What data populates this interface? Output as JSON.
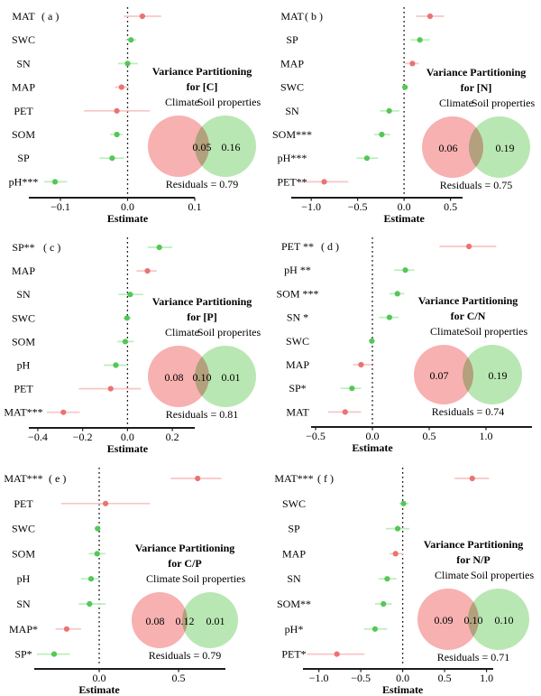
{
  "figure_name": "variance-partitioning-forest-plots",
  "colors": {
    "climate_point": "#ec7373",
    "climate_ci": "#f8c6c6",
    "soil_point": "#55c757",
    "soil_ci": "#b9efb9",
    "venn_climate_fill": "#f7b1b1",
    "venn_soil_fill": "#b9e7b3",
    "axis_line": "#1c1c1c",
    "text": "#000000"
  },
  "chart_data": [
    {
      "type": "scatter",
      "panel_label": "( a )",
      "title": "Variance Partitioning",
      "subtitle": "for [C]",
      "legend": {
        "climate": "Climate",
        "soil": "Soil properties"
      },
      "venn_values": {
        "climate": null,
        "overlap": "0.05",
        "soil": "0.16"
      },
      "residuals_label": "Residuals = 0.79",
      "x_axis": {
        "label": "Estimate",
        "xlim": [
          -0.147,
          0.1
        ],
        "ticks": [
          {
            "v": -0.1,
            "t": "−0.1"
          },
          {
            "v": 0.0,
            "t": "0.0"
          },
          {
            "v": 0.1,
            "t": "0.1"
          }
        ]
      },
      "rows": [
        {
          "label": "MAT",
          "group": "climate",
          "est": 0.022,
          "lo": -0.006,
          "hi": 0.05
        },
        {
          "label": "SWC",
          "group": "soil",
          "est": 0.005,
          "lo": -0.003,
          "hi": 0.013
        },
        {
          "label": "SN",
          "group": "soil",
          "est": 0.0,
          "lo": -0.014,
          "hi": 0.015
        },
        {
          "label": "MAP",
          "group": "climate",
          "est": -0.009,
          "lo": -0.019,
          "hi": 0.002
        },
        {
          "label": "PET",
          "group": "climate",
          "est": -0.016,
          "lo": -0.065,
          "hi": 0.033
        },
        {
          "label": "SOM",
          "group": "soil",
          "est": -0.016,
          "lo": -0.026,
          "hi": -0.007
        },
        {
          "label": "SP",
          "group": "soil",
          "est": -0.023,
          "lo": -0.042,
          "hi": -0.005
        },
        {
          "label": "pH***",
          "group": "soil",
          "est": -0.108,
          "lo": -0.124,
          "hi": -0.09
        }
      ]
    },
    {
      "type": "scatter",
      "panel_label": "( b )",
      "title": "Variance Partitioning",
      "subtitle": "for [N]",
      "legend": {
        "climate": "Climate",
        "soil": "Soil properties"
      },
      "venn_values": {
        "climate": "0.06",
        "overlap": null,
        "soil": "0.19"
      },
      "residuals_label": "Residuals = 0.75",
      "x_axis": {
        "label": "Estimate",
        "xlim": [
          -1.215,
          0.63
        ],
        "ticks": [
          {
            "v": -1.0,
            "t": "−1.0"
          },
          {
            "v": -0.5,
            "t": "−0.5"
          },
          {
            "v": 0.0,
            "t": "0.0"
          },
          {
            "v": 0.5,
            "t": "0.5"
          }
        ]
      },
      "rows": [
        {
          "label": "MAT",
          "group": "climate",
          "est": 0.28,
          "lo": 0.13,
          "hi": 0.43
        },
        {
          "label": "SP",
          "group": "soil",
          "est": 0.17,
          "lo": 0.07,
          "hi": 0.28
        },
        {
          "label": "MAP",
          "group": "climate",
          "est": 0.09,
          "lo": 0.01,
          "hi": 0.16
        },
        {
          "label": "SWC",
          "group": "soil",
          "est": 0.01,
          "lo": -0.01,
          "hi": 0.03
        },
        {
          "label": "SN",
          "group": "soil",
          "est": -0.16,
          "lo": -0.26,
          "hi": -0.05
        },
        {
          "label": "SOM***",
          "group": "soil",
          "est": -0.24,
          "lo": -0.32,
          "hi": -0.15
        },
        {
          "label": "pH***",
          "group": "soil",
          "est": -0.4,
          "lo": -0.51,
          "hi": -0.28
        },
        {
          "label": "PET**",
          "group": "climate",
          "est": -0.86,
          "lo": -1.12,
          "hi": -0.6
        }
      ]
    },
    {
      "type": "scatter",
      "panel_label": "( c )",
      "title": "Variance Partitioning",
      "subtitle": "for [P]",
      "legend": {
        "climate": "Climate",
        "soil": "Soil properites"
      },
      "venn_values": {
        "climate": "0.08",
        "overlap": "0.10",
        "soil": "0.01"
      },
      "residuals_label": "Residuals = 0.81",
      "x_axis": {
        "label": "Estimate",
        "xlim": [
          -0.44,
          0.3
        ],
        "ticks": [
          {
            "v": -0.4,
            "t": "−0.4"
          },
          {
            "v": -0.2,
            "t": "−0.2"
          },
          {
            "v": 0.0,
            "t": "0.0"
          },
          {
            "v": 0.2,
            "t": "0.2"
          }
        ]
      },
      "rows": [
        {
          "label": "SP**",
          "group": "soil",
          "est": 0.142,
          "lo": 0.09,
          "hi": 0.2
        },
        {
          "label": "MAP",
          "group": "climate",
          "est": 0.089,
          "lo": 0.04,
          "hi": 0.13
        },
        {
          "label": "SN",
          "group": "soil",
          "est": 0.012,
          "lo": -0.04,
          "hi": 0.07
        },
        {
          "label": "SWC",
          "group": "soil",
          "est": -0.002,
          "lo": -0.02,
          "hi": 0.016
        },
        {
          "label": "SOM",
          "group": "soil",
          "est": -0.01,
          "lo": -0.045,
          "hi": 0.028
        },
        {
          "label": "pH",
          "group": "soil",
          "est": -0.052,
          "lo": -0.106,
          "hi": 0.001
        },
        {
          "label": "PET",
          "group": "climate",
          "est": -0.075,
          "lo": -0.217,
          "hi": 0.06
        },
        {
          "label": "MAT***",
          "group": "climate",
          "est": -0.286,
          "lo": -0.36,
          "hi": -0.213
        }
      ]
    },
    {
      "type": "scatter",
      "panel_label": "( d )",
      "title": "Variance Partitioning",
      "subtitle": "for C/N",
      "legend": {
        "climate": "Climate",
        "soil": "Soil properties"
      },
      "venn_values": {
        "climate": "0.07",
        "overlap": null,
        "soil": "0.19"
      },
      "residuals_label": "Residuals = 0.74",
      "x_axis": {
        "label": "Estimate",
        "xlim": [
          -0.54,
          1.405
        ],
        "ticks": [
          {
            "v": -0.5,
            "t": "−0.5"
          },
          {
            "v": 0.0,
            "t": "0.0"
          },
          {
            "v": 0.5,
            "t": "0.5"
          },
          {
            "v": 1.0,
            "t": "1.0"
          }
        ]
      },
      "rows": [
        {
          "label": "PET **",
          "group": "climate",
          "est": 0.85,
          "lo": 0.59,
          "hi": 1.09
        },
        {
          "label": "pH **",
          "group": "soil",
          "est": 0.29,
          "lo": 0.19,
          "hi": 0.37
        },
        {
          "label": "SOM ***",
          "group": "soil",
          "est": 0.22,
          "lo": 0.15,
          "hi": 0.28
        },
        {
          "label": "SN *",
          "group": "soil",
          "est": 0.15,
          "lo": 0.06,
          "hi": 0.23
        },
        {
          "label": "SWC",
          "group": "soil",
          "est": -0.005,
          "lo": -0.03,
          "hi": 0.02
        },
        {
          "label": "MAP",
          "group": "climate",
          "est": -0.1,
          "lo": -0.17,
          "hi": -0.01
        },
        {
          "label": "SP*",
          "group": "soil",
          "est": -0.18,
          "lo": -0.28,
          "hi": -0.1
        },
        {
          "label": "MAT",
          "group": "climate",
          "est": -0.24,
          "lo": -0.39,
          "hi": -0.1
        }
      ]
    },
    {
      "type": "scatter",
      "panel_label": "( e )",
      "title": "Variance Partitioning",
      "subtitle": "for C/P",
      "legend": {
        "climate": "Climate",
        "soil": "Soil properties"
      },
      "venn_values": {
        "climate": "0.08",
        "overlap": "0.12",
        "soil": "0.01"
      },
      "residuals_label": "Residuals = 0.79",
      "x_axis": {
        "label": "Estimate",
        "xlim": [
          -0.409,
          0.795
        ],
        "ticks": [
          {
            "v": 0.0,
            "t": "0.0"
          },
          {
            "v": 0.5,
            "t": "0.5"
          }
        ]
      },
      "rows": [
        {
          "label": "MAT***",
          "group": "climate",
          "est": 0.62,
          "lo": 0.45,
          "hi": 0.77
        },
        {
          "label": "PET",
          "group": "climate",
          "est": 0.04,
          "lo": -0.24,
          "hi": 0.32
        },
        {
          "label": "SWC",
          "group": "soil",
          "est": -0.01,
          "lo": -0.025,
          "hi": 0.008
        },
        {
          "label": "SOM",
          "group": "soil",
          "est": -0.013,
          "lo": -0.066,
          "hi": 0.038
        },
        {
          "label": "pH",
          "group": "soil",
          "est": -0.051,
          "lo": -0.114,
          "hi": 0.001
        },
        {
          "label": "SN",
          "group": "soil",
          "est": -0.061,
          "lo": -0.129,
          "hi": 0.04
        },
        {
          "label": "MAP*",
          "group": "climate",
          "est": -0.205,
          "lo": -0.275,
          "hi": -0.114
        },
        {
          "label": "SP*",
          "group": "soil",
          "est": -0.284,
          "lo": -0.392,
          "hi": -0.184
        }
      ]
    },
    {
      "type": "scatter",
      "panel_label": "( f )",
      "title": "Variance Partitioning",
      "subtitle": "for N/P",
      "legend": {
        "climate": "Climate",
        "soil": "Soil properties"
      },
      "venn_values": {
        "climate": "0.09",
        "overlap": "0.10",
        "soil": "0.10"
      },
      "residuals_label": "Residuals = 0.71",
      "x_axis": {
        "label": "Estimate",
        "xlim": [
          -1.19,
          1.08
        ],
        "ticks": [
          {
            "v": -1.0,
            "t": "−1.0"
          },
          {
            "v": -0.5,
            "t": "−0.5"
          },
          {
            "v": 0.0,
            "t": "0.0"
          },
          {
            "v": 0.5,
            "t": "0.5"
          },
          {
            "v": 1.0,
            "t": "1.0"
          }
        ]
      },
      "rows": [
        {
          "label": "MAT***",
          "group": "climate",
          "est": 0.83,
          "lo": 0.62,
          "hi": 1.03
        },
        {
          "label": "SWC",
          "group": "soil",
          "est": 0.01,
          "lo": -0.04,
          "hi": 0.07
        },
        {
          "label": "SP",
          "group": "soil",
          "est": -0.06,
          "lo": -0.2,
          "hi": 0.08
        },
        {
          "label": "MAP",
          "group": "climate",
          "est": -0.085,
          "lo": -0.155,
          "hi": 0.007
        },
        {
          "label": "SN",
          "group": "soil",
          "est": -0.185,
          "lo": -0.29,
          "hi": -0.074
        },
        {
          "label": "SOM**",
          "group": "soil",
          "est": -0.23,
          "lo": -0.33,
          "hi": -0.13
        },
        {
          "label": "pH*",
          "group": "soil",
          "est": -0.33,
          "lo": -0.46,
          "hi": -0.185
        },
        {
          "label": "PET*",
          "group": "climate",
          "est": -0.785,
          "lo": -1.14,
          "hi": -0.456
        }
      ]
    }
  ]
}
